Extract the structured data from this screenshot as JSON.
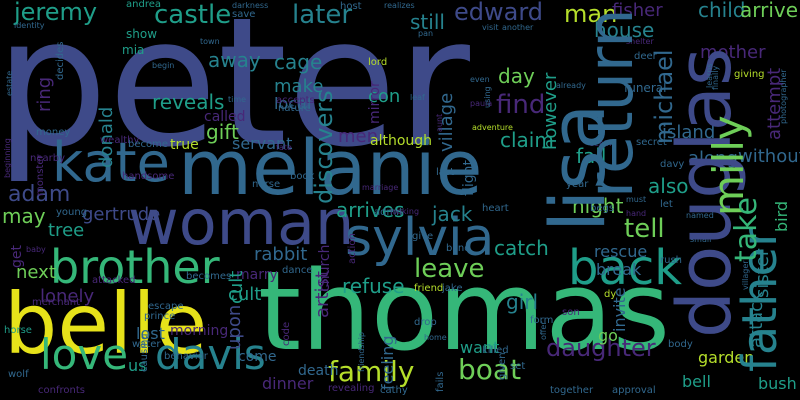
{
  "words": {
    "peter": "peter",
    "thomas": "thomas",
    "belle": "belle",
    "melanie": "melanie",
    "lisa": "lisa",
    "douglas": "douglas",
    "woman": "woman",
    "sylvia": "sylvia",
    "return": "return",
    "father": "father",
    "kate": "kate",
    "brother": "brother",
    "back": "back",
    "love": "love",
    "davis": "davis",
    "milly": "milly",
    "take": "take",
    "michael": "michael",
    "family": "family",
    "boat": "boat",
    "daughter": "daughter",
    "leave": "leave",
    "tell": "tell",
    "castle": "castle",
    "later": "later",
    "jeremy": "jeremy",
    "edward": "edward",
    "man": "man",
    "fisher": "fisher",
    "child": "child",
    "arrive": "arrive",
    "discovers": "discovers",
    "find": "find",
    "adam": "adam",
    "may": "may",
    "gertrude": "gertrude",
    "away": "away",
    "cage": "cage",
    "reveals": "reveals",
    "gift": "gift",
    "still": "still",
    "house": "house",
    "village": "village",
    "however": "however",
    "mother": "mother",
    "attempt": "attempt",
    "day": "day",
    "claim": "claim",
    "night": "night",
    "arrives": "arrives",
    "jack": "jack",
    "catch": "catch",
    "fall": "fall",
    "also": "also",
    "refuse": "refuse",
    "girl": "girl",
    "next": "next",
    "lonely": "lonely",
    "cult": "cult",
    "tree": "tree",
    "rabbit": "rabbit",
    "artist": "artist",
    "upon": "upon",
    "island": "island",
    "along": "along",
    "without": "without",
    "sister": "sister",
    "attack": "attack",
    "bird": "bird",
    "donald": "donald",
    "ring": "ring",
    "make": "make",
    "local": "local",
    "con": "con",
    "servant": "servant",
    "men": "men",
    "although": "although",
    "true": "true",
    "invite": "invite",
    "rescue": "rescue",
    "break": "break",
    "garden": "garden",
    "bell": "bell",
    "bush": "bush",
    "want": "want",
    "feeling": "feeling",
    "go": "go",
    "lost": "lost",
    "us": "us",
    "come": "come",
    "dinner": "dinner",
    "death": "death",
    "get": "get",
    "church": "church",
    "mirror": "mirror",
    "called": "called",
    "marry": "marry",
    "morning": "morning",
    "mia": "mia",
    "show": "show",
    "andrea": "andrea",
    "darkness": "darkness",
    "save": "save",
    "host": "host",
    "realizes": "realizes",
    "identity": "identity",
    "estate": "estate",
    "town": "town",
    "begin": "begin",
    "lord": "lord",
    "pan": "pan",
    "visit": "visit",
    "another": "another",
    "shelter": "shelter",
    "deer": "deer",
    "funeral": "funeral",
    "learns": "learns",
    "giving": "giving",
    "finally": "finally",
    "photographer": "photographer",
    "flight": "flight",
    "seeing": "seeing",
    "secret": "secret",
    "davy": "davy",
    "must": "must",
    "let": "let",
    "hand": "hand",
    "named": "named",
    "small": "small",
    "rush": "rush",
    "villager": "villager",
    "begs": "begs",
    "year": "year",
    "blind": "blind",
    "heart": "heart",
    "give": "give",
    "marriage": "marriage",
    "looking": "looking",
    "admit": "admit",
    "nurse": "nurse",
    "book": "book",
    "fate": "fate",
    "nature": "nature",
    "accepts": "accepts",
    "time": "time",
    "money": "money",
    "wealthy": "wealthy",
    "become": "become",
    "beginning": "beginning",
    "nearby": "nearby",
    "monster": "monster",
    "young": "young",
    "baby": "baby",
    "handsome": "handsome",
    "attacked": "attacked",
    "becomes": "becomes",
    "dance": "dance",
    "escape": "escape",
    "prince": "prince",
    "water": "water",
    "merchant": "merchant",
    "horse": "horse",
    "wolf": "wolf",
    "confronts": "confronts",
    "causing": "causing",
    "behavior": "behavior",
    "revealing": "revealing",
    "cathy": "cathy",
    "friend": "friend",
    "friendship": "friendship",
    "drop": "drop",
    "home": "home",
    "jake": "jake",
    "fails": "fails",
    "killed": "killed",
    "given": "given",
    "set": "set",
    "offer": "offer",
    "form": "form",
    "together": "together",
    "approval": "approval",
    "son": "son",
    "body": "body",
    "dy": "dy",
    "decides": "decides",
    "leaf": "leaf",
    "aunt": "aunt",
    "paula": "paula",
    "using": "using",
    "even": "even",
    "adventure": "adventure",
    "already": "already",
    "last": "last",
    "action": "action",
    "code": "code"
  },
  "colors": {
    "background": "#000000",
    "deep_purple": "#440154",
    "indigo": "#482878",
    "slate_blue": "#3e4a89",
    "steel_blue": "#31688e",
    "teal": "#26828e",
    "sea_green": "#1f9e89",
    "green": "#35b779",
    "light_green": "#6ece58",
    "lime": "#b5de2b",
    "yellow": "#e6e21a"
  }
}
